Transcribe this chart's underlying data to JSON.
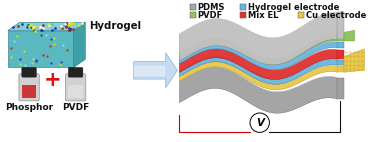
{
  "legend_items": [
    {
      "label": "PDMS",
      "color": "#a8a8a8"
    },
    {
      "label": "Hydrogel electrode",
      "color": "#6ab5e0"
    },
    {
      "label": "PVDF",
      "color": "#92c462"
    },
    {
      "label": "Mix EL",
      "color": "#e03030"
    },
    {
      "label": "Cu electrode",
      "color": "#e8c84a"
    }
  ],
  "label_hydrogel": "Hydrogel",
  "label_phosphor": "Phosphor",
  "label_pvdf": "PVDF",
  "bg_color": "#ffffff",
  "title_fontsize": 7,
  "legend_fontsize": 6.0
}
